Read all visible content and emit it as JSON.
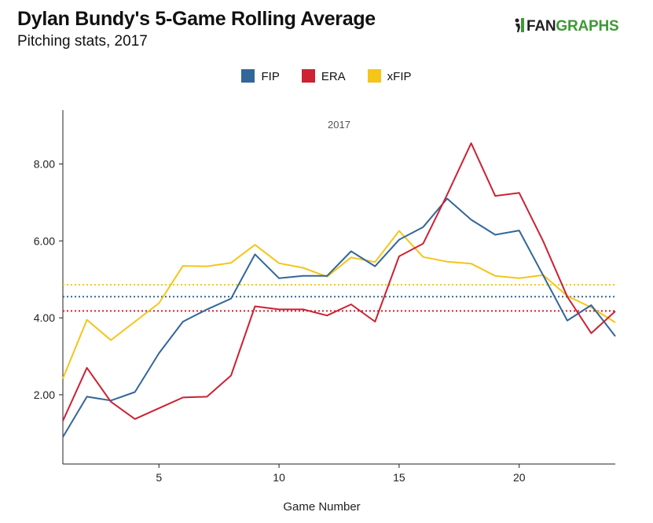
{
  "header": {
    "title": "Dylan Bundy's 5-Game Rolling Average",
    "subtitle": "Pitching stats, 2017",
    "logo_text_fan": "FAN",
    "logo_text_graphs": "GRAPHS"
  },
  "chart_data": {
    "type": "line",
    "title": "Dylan Bundy's 5-Game Rolling Average",
    "subtitle": "Pitching stats, 2017",
    "panel_label": "2017",
    "xlabel": "Game Number",
    "ylabel": "",
    "x": [
      1,
      2,
      3,
      4,
      5,
      6,
      7,
      8,
      9,
      10,
      11,
      12,
      13,
      14,
      15,
      16,
      17,
      18,
      19,
      20,
      21,
      22,
      23,
      24
    ],
    "xlim": [
      1,
      24
    ],
    "ylim": [
      0.2,
      9.4
    ],
    "x_ticks": [
      5,
      10,
      15,
      20
    ],
    "y_ticks": [
      2,
      4,
      6,
      8
    ],
    "y_tick_labels": [
      "2.00",
      "4.00",
      "6.00",
      "8.00"
    ],
    "legend_position": "top-center",
    "grid": false,
    "series": [
      {
        "name": "FIP",
        "color": "#336699",
        "values": [
          0.9,
          1.95,
          1.85,
          2.07,
          3.08,
          3.9,
          4.22,
          4.5,
          5.65,
          5.03,
          5.09,
          5.09,
          5.73,
          5.34,
          6.03,
          6.36,
          7.1,
          6.55,
          6.16,
          6.27,
          5.1,
          3.93,
          4.33,
          3.52
        ],
        "reference": 4.55
      },
      {
        "name": "ERA",
        "color": "#cc2233",
        "values": [
          1.32,
          2.7,
          1.82,
          1.37,
          1.65,
          1.93,
          1.95,
          2.5,
          4.3,
          4.22,
          4.22,
          4.06,
          4.35,
          3.9,
          5.6,
          5.93,
          7.2,
          8.54,
          7.17,
          7.25,
          5.99,
          4.55,
          3.6,
          4.17
        ],
        "reference": 4.18
      },
      {
        "name": "xFIP",
        "color": "#f5c518",
        "values": [
          2.42,
          3.95,
          3.42,
          3.9,
          4.38,
          5.35,
          5.34,
          5.43,
          5.9,
          5.42,
          5.3,
          5.07,
          5.57,
          5.45,
          6.26,
          5.58,
          5.46,
          5.41,
          5.09,
          5.03,
          5.11,
          4.57,
          4.27,
          3.88
        ],
        "reference": 4.86
      }
    ]
  }
}
